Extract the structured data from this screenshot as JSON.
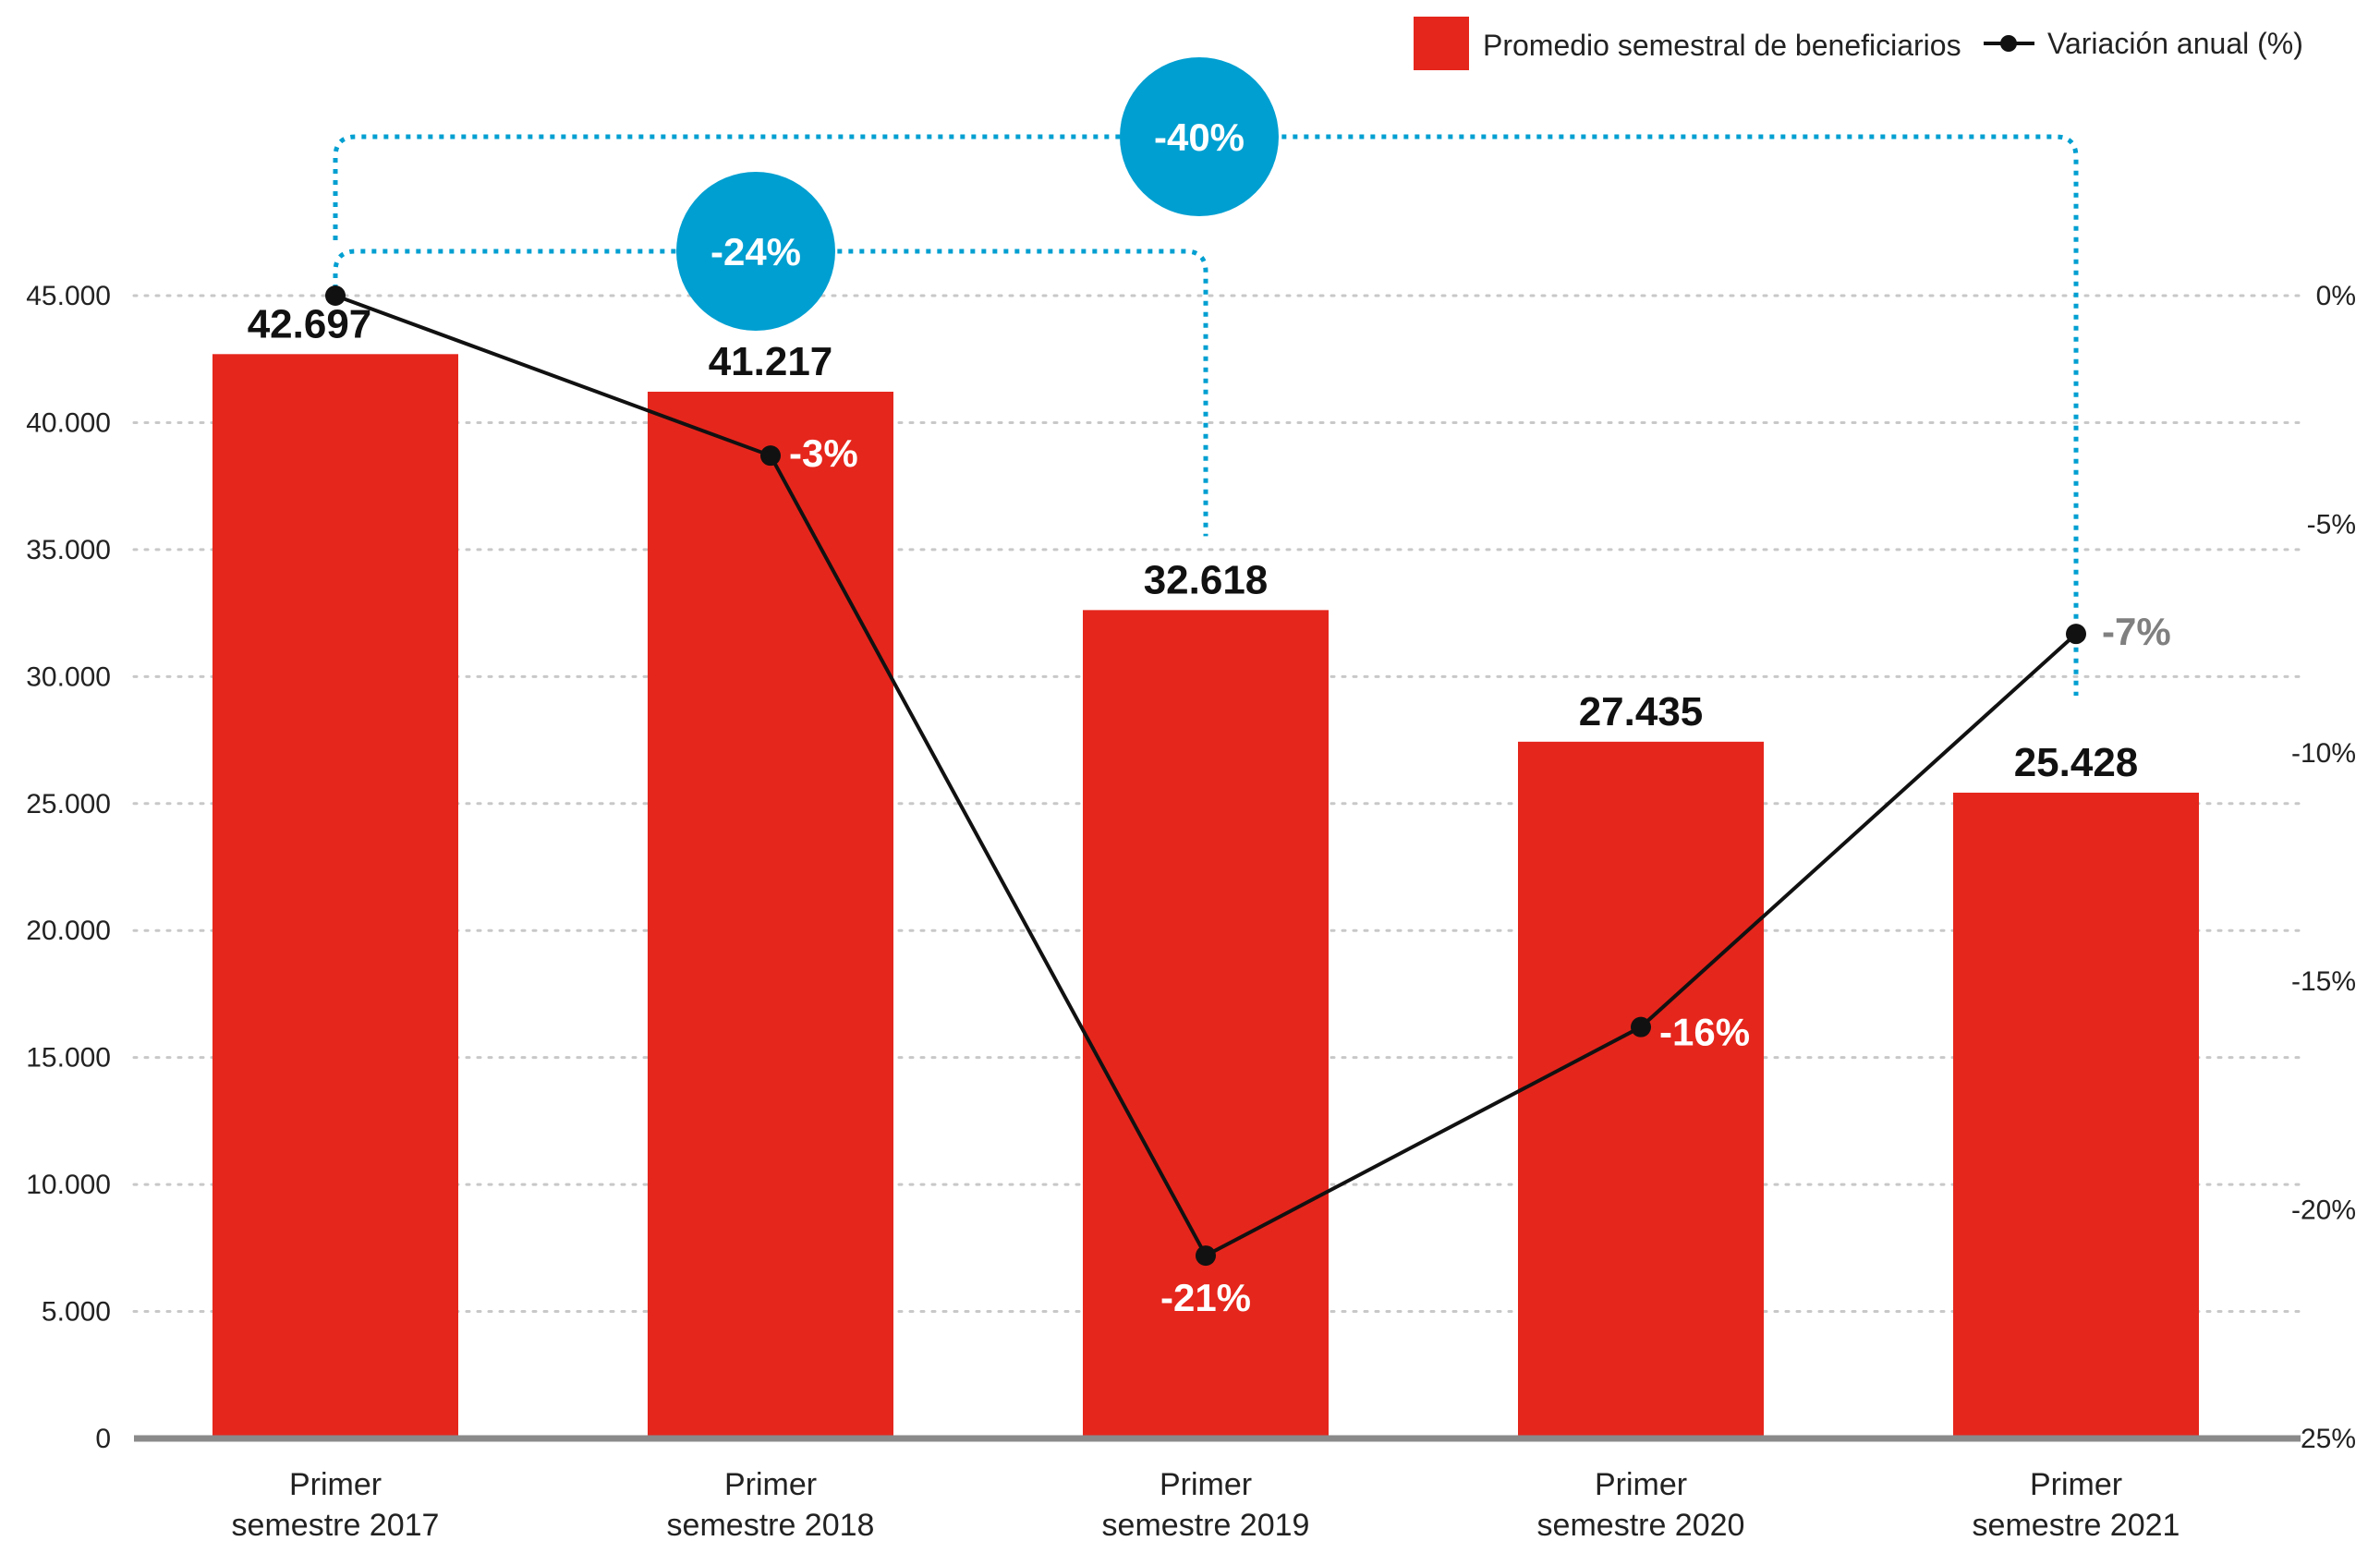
{
  "chart_data": {
    "type": "bar",
    "categories": [
      [
        "Primer",
        "semestre 2017"
      ],
      [
        "Primer",
        "semestre 2018"
      ],
      [
        "Primer",
        "semestre 2019"
      ],
      [
        "Primer",
        "semestre 2020"
      ],
      [
        "Primer",
        "semestre 2021"
      ]
    ],
    "series": [
      {
        "name": "Promedio semestral de beneficiarios",
        "kind": "bar",
        "axis": "left",
        "values": [
          42697,
          41217,
          32618,
          27435,
          25428
        ],
        "labels": [
          "42.697",
          "41.217",
          "32.618",
          "27.435",
          "25.428"
        ],
        "color": "#e5261c"
      },
      {
        "name": "Variación anual (%)",
        "kind": "line",
        "axis": "right",
        "values": [
          0,
          -3.5,
          -21,
          -16,
          -7.4
        ],
        "labels": [
          "",
          "-3%",
          "-21%",
          "-16%",
          "-7%"
        ],
        "label_colors": [
          "#ffffff",
          "#ffffff",
          "#ffffff",
          "#ffffff",
          "#808080"
        ],
        "color": "#111111"
      }
    ],
    "y_left": {
      "ylim": [
        0,
        45000
      ],
      "ticks": [
        0,
        5000,
        10000,
        15000,
        20000,
        25000,
        30000,
        35000,
        40000,
        45000
      ],
      "tick_labels": [
        "0",
        "5.000",
        "10.000",
        "15.000",
        "20.000",
        "25.000",
        "30.000",
        "35.000",
        "40.000",
        "45.000"
      ]
    },
    "y_right": {
      "ylim": [
        -25,
        0
      ],
      "ticks": [
        0,
        -5,
        -10,
        -15,
        -20,
        -25
      ],
      "tick_labels": [
        "0%",
        "-5%",
        "-10%",
        "-15%",
        "-20%",
        "-25%"
      ]
    },
    "comparisons": [
      {
        "from_index": 0,
        "to_index": 2,
        "label": "-24%",
        "color": "#009fd1"
      },
      {
        "from_index": 0,
        "to_index": 4,
        "label": "-40%",
        "color": "#009fd1"
      }
    ],
    "grid": "horizontal dotted",
    "legend_position": "top-right",
    "title": "",
    "xlabel": "",
    "ylabel": ""
  }
}
